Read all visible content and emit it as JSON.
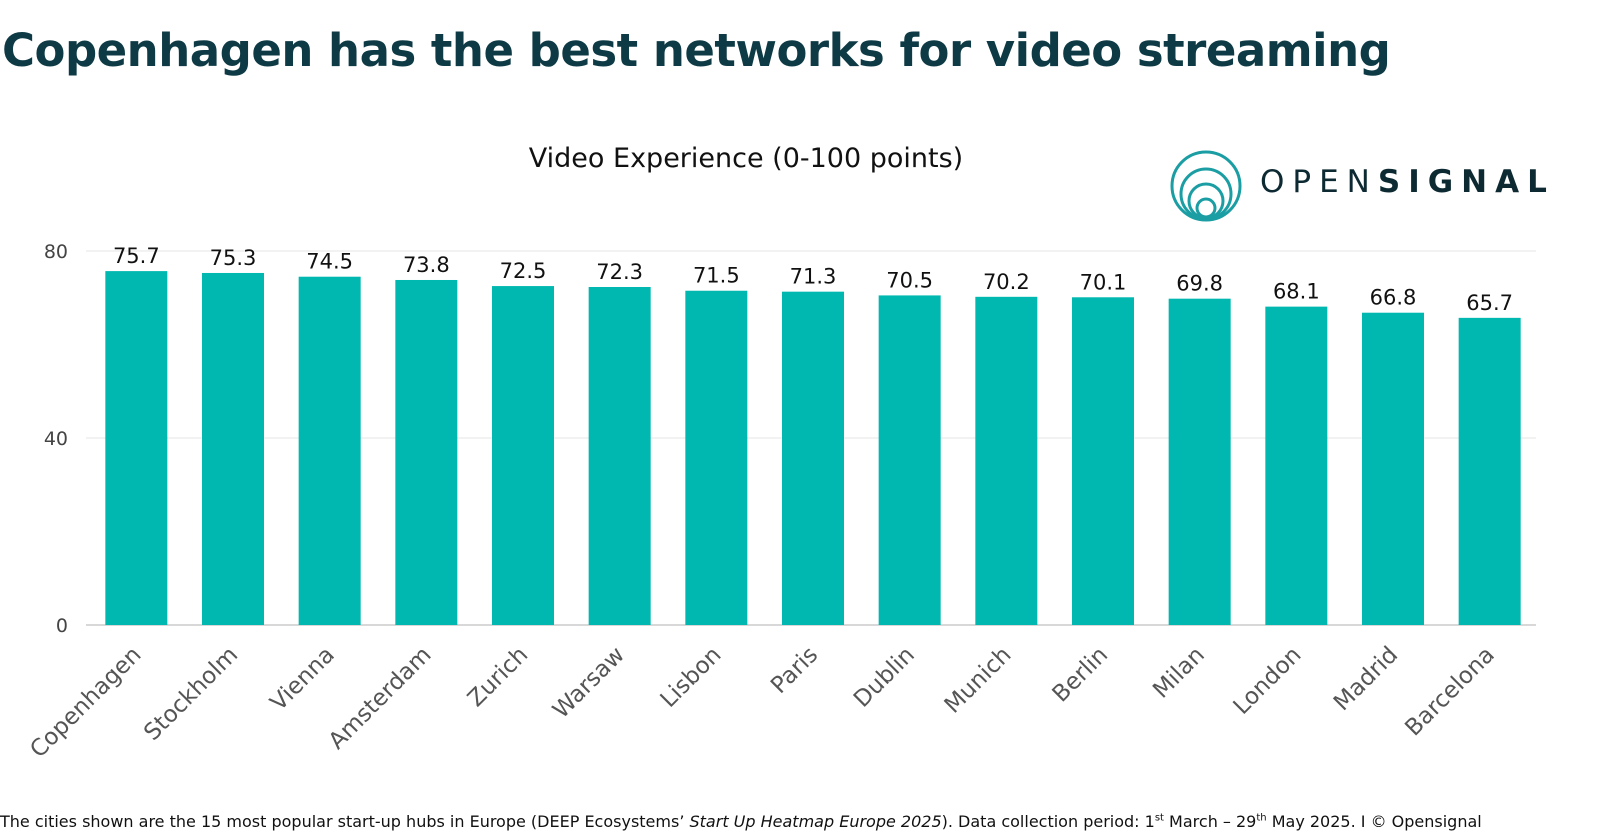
{
  "headline": "Copenhagen has the best networks for video streaming",
  "logo": {
    "text_light": "OPEN",
    "text_bold": "SIGNAL",
    "icon": "concentric-circles-icon",
    "color": "#1a9ea3"
  },
  "footnote": {
    "part1": "The cities shown are the 15 most popular start-up hubs in Europe (DEEP Ecosystems’ ",
    "italic": "Start Up Heatmap Europe 2025",
    "part2": "). Data collection period: 1",
    "sup1": "st",
    "part3": " March – 29",
    "sup2": "th",
    "part4": " May 2025. I © Opensignal"
  },
  "colors": {
    "bar": "#00b8b0",
    "headline": "#0d3a44",
    "grid": "#e6e6e6",
    "axis": "#cccccc",
    "tick_label": "#444444",
    "city_label": "#555555"
  },
  "chart_data": {
    "type": "bar",
    "title": "Video Experience (0-100 points)",
    "categories": [
      "Copenhagen",
      "Stockholm",
      "Vienna",
      "Amsterdam",
      "Zurich",
      "Warsaw",
      "Lisbon",
      "Paris",
      "Dublin",
      "Munich",
      "Berlin",
      "Milan",
      "London",
      "Madrid",
      "Barcelona"
    ],
    "values": [
      75.7,
      75.3,
      74.5,
      73.8,
      72.5,
      72.3,
      71.5,
      71.3,
      70.5,
      70.2,
      70.1,
      69.8,
      68.1,
      66.8,
      65.7
    ],
    "value_labels": [
      "75.7",
      "75.3",
      "74.5",
      "73.8",
      "72.5",
      "72.3",
      "71.5",
      "71.3",
      "70.5",
      "70.2",
      "70.1",
      "69.8",
      "68.1",
      "66.8",
      "65.7"
    ],
    "yticks": [
      0,
      40,
      80
    ],
    "ytick_labels": [
      "0",
      "40",
      "80"
    ],
    "ylim": [
      0,
      80
    ],
    "grid": true,
    "xlabel": "",
    "ylabel": ""
  }
}
